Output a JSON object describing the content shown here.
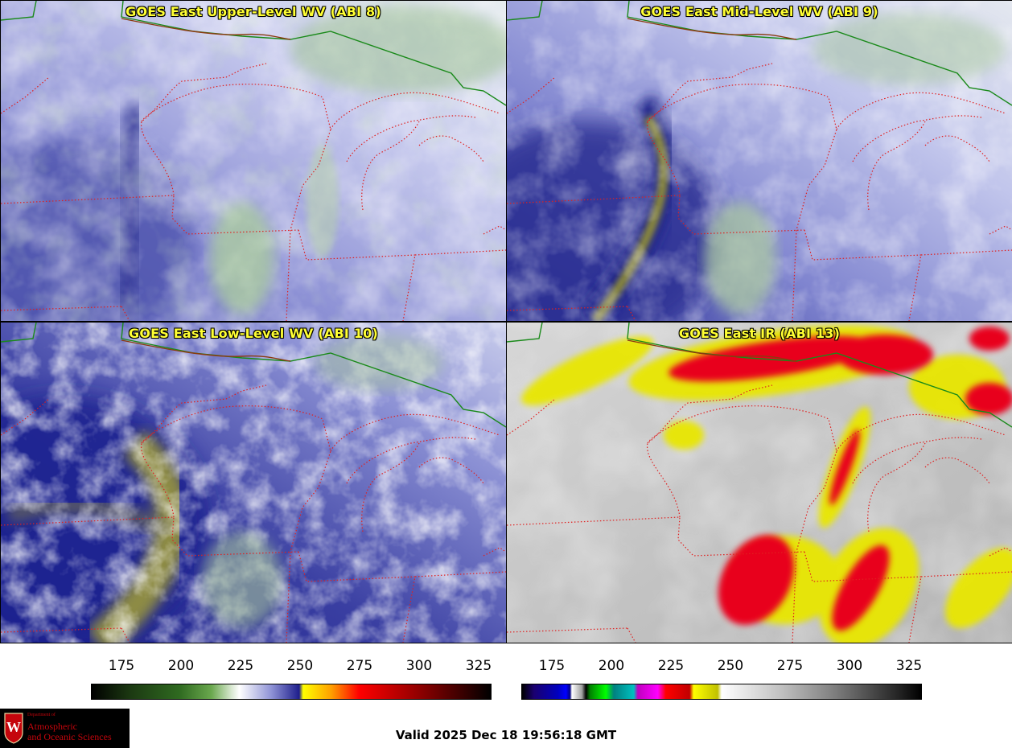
{
  "panels": [
    {
      "title": "GOES East Upper-Level WV (ABI 8)"
    },
    {
      "title": "GOES East Mid-Level WV (ABI 9)"
    },
    {
      "title": "GOES East Low-Level WV (ABI 10)"
    },
    {
      "title": "GOES East IR (ABI 13)"
    }
  ],
  "colorbars": {
    "wv": {
      "ticks": [
        "175",
        "200",
        "225",
        "250",
        "275",
        "300",
        "325"
      ]
    },
    "ir": {
      "ticks": [
        "175",
        "200",
        "225",
        "250",
        "275",
        "300",
        "325"
      ]
    }
  },
  "footer": {
    "valid": "Valid 2025 Dec 18 19:56:18 GMT",
    "logo_small": "Department of",
    "logo_line1": "Atmospheric",
    "logo_line2": "and Oceanic Sciences",
    "logo_letter": "W"
  },
  "colors": {
    "title_text": "#ffff33",
    "state_borders": "#e02020",
    "country_border": "#1a8a1a",
    "coast": "#8b3a10",
    "logo_red": "#c5050c"
  }
}
